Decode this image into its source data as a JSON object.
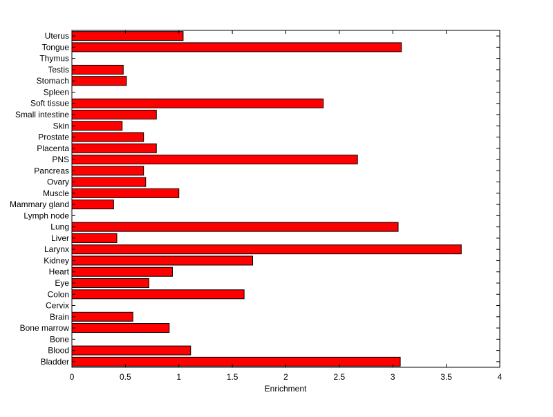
{
  "chart_data": {
    "type": "bar",
    "orientation": "horizontal",
    "title": "",
    "xlabel": "Enrichment",
    "ylabel": "",
    "xlim": [
      0,
      4
    ],
    "x_ticks": [
      0,
      0.5,
      1,
      1.5,
      2,
      2.5,
      3,
      3.5,
      4
    ],
    "x_tick_labels": [
      "0",
      "0.5",
      "1",
      "1.5",
      "2",
      "2.5",
      "3",
      "3.5",
      "4"
    ],
    "grid": false,
    "categories": [
      "Bladder",
      "Blood",
      "Bone",
      "Bone marrow",
      "Brain",
      "Cervix",
      "Colon",
      "Eye",
      "Heart",
      "Kidney",
      "Larynx",
      "Liver",
      "Lung",
      "Lymph node",
      "Mammary gland",
      "Muscle",
      "Ovary",
      "Pancreas",
      "PNS",
      "Placenta",
      "Prostate",
      "Skin",
      "Small intestine",
      "Soft tissue",
      "Spleen",
      "Stomach",
      "Testis",
      "Thymus",
      "Tongue",
      "Uterus"
    ],
    "values": [
      3.07,
      1.11,
      0,
      0.91,
      0.57,
      0,
      1.61,
      0.72,
      0.94,
      1.69,
      3.64,
      0.42,
      3.05,
      0,
      0.39,
      1.0,
      0.69,
      0.67,
      2.67,
      0.79,
      0.67,
      0.47,
      0.79,
      2.35,
      0,
      0.51,
      0.48,
      0,
      3.08,
      1.04
    ],
    "colors": {
      "bar_fill": "#ff0000",
      "bar_edge": "#000000",
      "axis": "#000000",
      "background": "#ffffff"
    }
  }
}
